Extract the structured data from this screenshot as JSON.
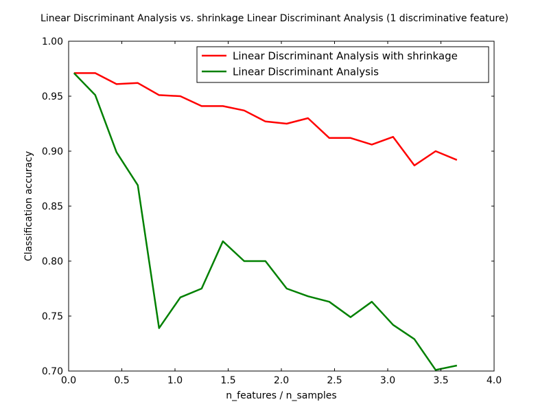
{
  "chart_data": {
    "type": "line",
    "title": "Linear Discriminant Analysis vs. shrinkage Linear Discriminant Analysis (1 discriminative feature)",
    "xlabel": "n_features / n_samples",
    "ylabel": "Classification accuracy",
    "xlim": [
      0.0,
      4.0
    ],
    "ylim": [
      0.7,
      1.0
    ],
    "xticks": [
      "0.0",
      "0.5",
      "1.0",
      "1.5",
      "2.0",
      "2.5",
      "3.0",
      "3.5",
      "4.0"
    ],
    "yticks": [
      "0.70",
      "0.75",
      "0.80",
      "0.85",
      "0.90",
      "0.95",
      "1.00"
    ],
    "grid": false,
    "legend_position": "top-right",
    "x": [
      0.05,
      0.25,
      0.45,
      0.65,
      0.85,
      1.05,
      1.25,
      1.45,
      1.65,
      1.85,
      2.05,
      2.25,
      2.45,
      2.65,
      2.85,
      3.05,
      3.25,
      3.45,
      3.65
    ],
    "series": [
      {
        "name": "Linear Discriminant Analysis with shrinkage",
        "color": "#ff0000",
        "values": [
          0.971,
          0.971,
          0.961,
          0.962,
          0.951,
          0.95,
          0.941,
          0.941,
          0.937,
          0.927,
          0.925,
          0.93,
          0.912,
          0.912,
          0.906,
          0.913,
          0.887,
          0.9,
          0.892
        ]
      },
      {
        "name": "Linear Discriminant Analysis",
        "color": "#008000",
        "values": [
          0.971,
          0.951,
          0.899,
          0.869,
          0.739,
          0.767,
          0.775,
          0.818,
          0.8,
          0.8,
          0.775,
          0.768,
          0.763,
          0.749,
          0.763,
          0.742,
          0.729,
          0.701,
          0.705
        ]
      }
    ]
  }
}
